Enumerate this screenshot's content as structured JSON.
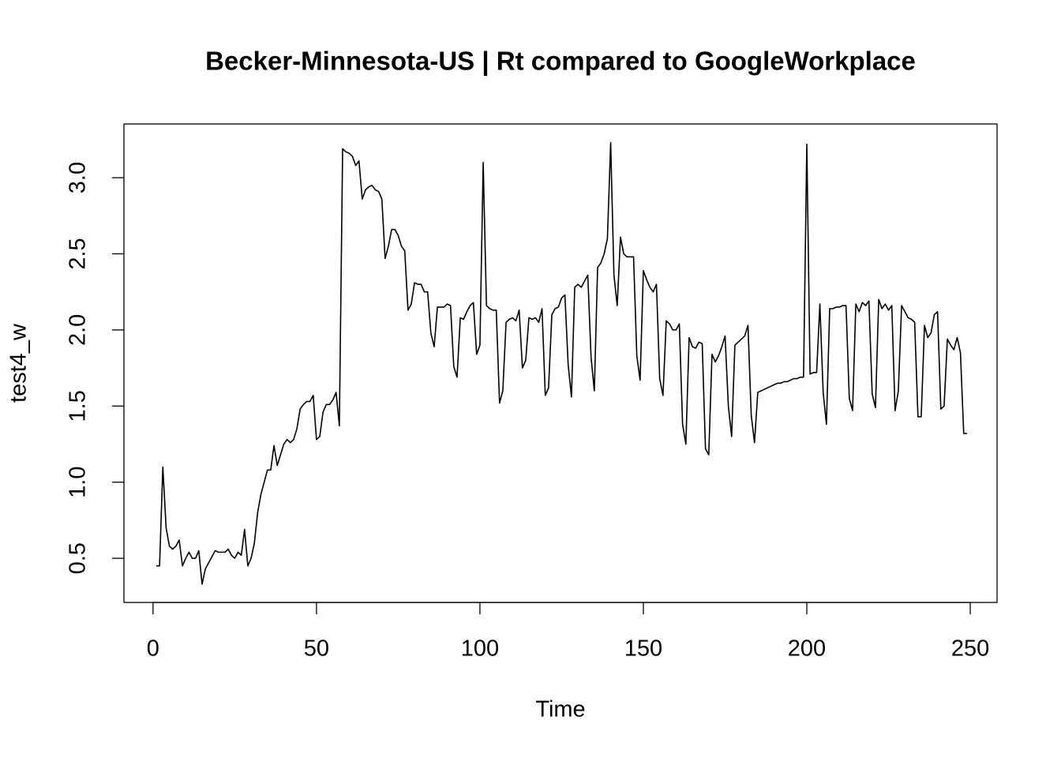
{
  "chart_data": {
    "type": "line",
    "title": "Becker-Minnesota-US | Rt compared to GoogleWorkplace",
    "xlabel": "Time",
    "ylabel": "test4_w",
    "xlim": [
      -8.9,
      258.2
    ],
    "ylim": [
      0.21,
      3.353
    ],
    "xticks": [
      0,
      50,
      100,
      150,
      200,
      250
    ],
    "yticks": [
      0.5,
      {
        "value": 1,
        "label": "1.0"
      },
      1.5,
      {
        "value": 2,
        "label": "2.0"
      },
      2.5,
      {
        "value": 3,
        "label": "3.0"
      }
    ],
    "x": [
      1,
      2,
      3,
      4,
      5,
      6,
      7,
      8,
      9,
      10,
      11,
      12,
      13,
      14,
      15,
      16,
      17,
      18,
      19,
      20,
      21,
      22,
      23,
      24,
      25,
      26,
      27,
      28,
      29,
      30,
      31,
      32,
      33,
      34,
      35,
      36,
      37,
      38,
      39,
      40,
      41,
      42,
      43,
      44,
      45,
      46,
      47,
      48,
      49,
      50,
      51,
      52,
      53,
      54,
      55,
      56,
      57,
      58,
      59,
      60,
      61,
      62,
      63,
      64,
      65,
      66,
      67,
      68,
      69,
      70,
      71,
      72,
      73,
      74,
      75,
      76,
      77,
      78,
      79,
      80,
      81,
      82,
      83,
      84,
      85,
      86,
      87,
      88,
      89,
      90,
      91,
      92,
      93,
      94,
      95,
      96,
      97,
      98,
      99,
      100,
      101,
      102,
      103,
      104,
      105,
      106,
      107,
      108,
      109,
      110,
      111,
      112,
      113,
      114,
      115,
      116,
      117,
      118,
      119,
      120,
      121,
      122,
      123,
      124,
      125,
      126,
      127,
      128,
      129,
      130,
      131,
      132,
      133,
      134,
      135,
      136,
      137,
      138,
      139,
      140,
      141,
      142,
      143,
      144,
      145,
      146,
      147,
      148,
      149,
      150,
      151,
      152,
      153,
      154,
      155,
      156,
      157,
      158,
      159,
      160,
      161,
      162,
      163,
      164,
      165,
      166,
      167,
      168,
      169,
      170,
      171,
      172,
      173,
      174,
      175,
      176,
      177,
      178,
      179,
      180,
      181,
      182,
      183,
      184,
      185,
      186,
      187,
      188,
      189,
      190,
      191,
      192,
      193,
      194,
      195,
      196,
      197,
      198,
      199,
      200,
      201,
      202,
      203,
      204,
      205,
      206,
      207,
      208,
      209,
      210,
      211,
      212,
      213,
      214,
      215,
      216,
      217,
      218,
      219,
      220,
      221,
      222,
      223,
      224,
      225,
      226,
      227,
      228,
      229,
      230,
      231,
      232,
      233,
      234,
      235,
      236,
      237,
      238,
      239,
      240,
      241,
      242,
      243,
      244,
      245,
      246,
      247,
      248,
      249
    ],
    "series": [
      {
        "color": "#000000",
        "values": [
          0.45,
          0.45,
          1.1,
          0.7,
          0.58,
          0.56,
          0.58,
          0.62,
          0.45,
          0.5,
          0.54,
          0.5,
          0.5,
          0.55,
          0.33,
          0.43,
          0.47,
          0.51,
          0.55,
          0.54,
          0.54,
          0.54,
          0.56,
          0.52,
          0.5,
          0.54,
          0.52,
          0.69,
          0.45,
          0.5,
          0.6,
          0.8,
          0.92,
          1.0,
          1.08,
          1.08,
          1.24,
          1.11,
          1.18,
          1.25,
          1.28,
          1.26,
          1.28,
          1.35,
          1.48,
          1.51,
          1.53,
          1.53,
          1.57,
          1.28,
          1.3,
          1.46,
          1.51,
          1.51,
          1.54,
          1.59,
          1.37,
          3.19,
          3.17,
          3.16,
          3.14,
          3.08,
          3.11,
          2.86,
          2.92,
          2.94,
          2.95,
          2.92,
          2.91,
          2.86,
          2.47,
          2.55,
          2.66,
          2.66,
          2.62,
          2.55,
          2.52,
          2.13,
          2.17,
          2.31,
          2.3,
          2.3,
          2.25,
          2.25,
          1.98,
          1.89,
          2.15,
          2.15,
          2.15,
          2.17,
          2.16,
          1.76,
          1.69,
          2.08,
          2.07,
          2.12,
          2.16,
          2.18,
          1.84,
          1.9,
          3.1,
          2.16,
          2.14,
          2.13,
          2.13,
          1.52,
          1.6,
          2.05,
          2.07,
          2.08,
          2.06,
          2.13,
          1.75,
          1.8,
          2.08,
          2.07,
          2.08,
          2.05,
          2.14,
          1.57,
          1.62,
          2.1,
          2.14,
          2.15,
          2.21,
          2.23,
          1.77,
          1.56,
          2.28,
          2.3,
          2.28,
          2.32,
          2.36,
          1.82,
          1.6,
          2.41,
          2.44,
          2.5,
          2.6,
          3.23,
          2.36,
          2.16,
          2.61,
          2.5,
          2.48,
          2.48,
          2.48,
          1.83,
          1.67,
          2.39,
          2.33,
          2.28,
          2.25,
          2.3,
          1.68,
          1.57,
          2.06,
          2.04,
          2.0,
          2.0,
          2.04,
          1.38,
          1.25,
          1.95,
          1.89,
          1.88,
          1.92,
          1.91,
          1.22,
          1.18,
          1.84,
          1.79,
          1.83,
          1.89,
          1.96,
          1.5,
          1.3,
          1.9,
          1.92,
          1.94,
          1.96,
          2.03,
          1.44,
          1.26,
          1.59,
          1.6,
          1.61,
          1.62,
          1.63,
          1.64,
          1.65,
          1.65,
          1.66,
          1.66,
          1.67,
          1.68,
          1.68,
          1.69,
          1.69,
          3.22,
          1.71,
          1.72,
          1.72,
          2.17,
          1.59,
          1.38,
          2.14,
          2.14,
          2.15,
          2.15,
          2.16,
          2.16,
          1.55,
          1.47,
          2.17,
          2.12,
          2.18,
          2.16,
          2.19,
          1.58,
          1.49,
          2.2,
          2.14,
          2.17,
          2.13,
          2.16,
          1.47,
          1.6,
          2.16,
          2.12,
          2.08,
          2.07,
          2.05,
          1.43,
          1.43,
          2.03,
          1.95,
          1.98,
          2.1,
          2.12,
          1.48,
          1.5,
          1.94,
          1.9,
          1.87,
          1.95,
          1.85,
          1.32,
          1.32
        ]
      }
    ]
  }
}
